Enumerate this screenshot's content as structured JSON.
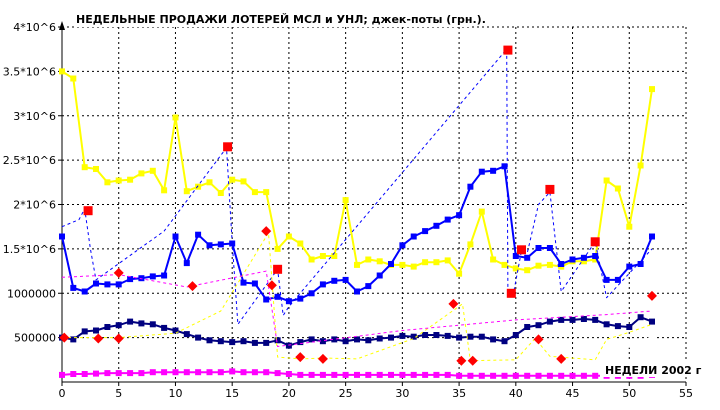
{
  "chart_data": {
    "type": "line",
    "title": "НЕДЕЛЬНЫЕ ПРОДАЖИ ЛОТЕРЕЙ МСЛ и УНЛ; джек-поты (грн.).",
    "xlabel": "НЕДЕЛИ 2002 г",
    "ylabel": "",
    "xlim": [
      0,
      55
    ],
    "ylim": [
      0,
      4000000
    ],
    "x_ticks": [
      0,
      5,
      10,
      15,
      20,
      25,
      30,
      35,
      40,
      45,
      50,
      55
    ],
    "x_tick_labels": [
      "0",
      "5",
      "10",
      "15",
      "20",
      "25",
      "30",
      "35",
      "40",
      "45",
      "50",
      "55"
    ],
    "y_ticks": [
      500000,
      1000000,
      1500000,
      2000000,
      2500000,
      3000000,
      3500000,
      4000000
    ],
    "y_tick_labels": [
      "500000",
      "1000000",
      "1.5*10^6",
      "2*10^6",
      "2.5*10^6",
      "3*10^6",
      "3.5*10^6",
      "4*10^6"
    ],
    "grid": true,
    "legend": "none",
    "series": [
      {
        "color": "#ffff00",
        "style": "solid",
        "marker": "square",
        "width": 2,
        "x": [
          0,
          1,
          2,
          3,
          4,
          5,
          6,
          7,
          8,
          9,
          10,
          11,
          12,
          13,
          14,
          15,
          16,
          17,
          18,
          19,
          20,
          21,
          22,
          23,
          24,
          25,
          26,
          27,
          28,
          29,
          30,
          31,
          32,
          33,
          34,
          35,
          36,
          37,
          38,
          39,
          40,
          41,
          42,
          43,
          44,
          45,
          46,
          47,
          48,
          49,
          50,
          51,
          52
        ],
        "y": [
          3500000,
          3420000,
          2420000,
          2400000,
          2250000,
          2270000,
          2280000,
          2350000,
          2380000,
          2160000,
          2980000,
          2150000,
          2200000,
          2250000,
          2130000,
          2280000,
          2260000,
          2140000,
          2140000,
          1500000,
          1640000,
          1560000,
          1380000,
          1420000,
          1420000,
          2050000,
          1320000,
          1380000,
          1360000,
          1320000,
          1320000,
          1300000,
          1350000,
          1350000,
          1370000,
          1220000,
          1550000,
          1920000,
          1380000,
          1320000,
          1280000,
          1260000,
          1310000,
          1320000,
          1300000,
          1360000,
          1360000,
          1380000,
          2270000,
          2180000,
          1750000,
          2440000,
          3300000
        ]
      },
      {
        "color": "#0000ff",
        "style": "solid",
        "marker": "square",
        "width": 2,
        "x": [
          0,
          1,
          2,
          3,
          4,
          5,
          6,
          7,
          8,
          9,
          10,
          11,
          12,
          13,
          14,
          15,
          16,
          17,
          18,
          19,
          20,
          21,
          22,
          23,
          24,
          25,
          26,
          27,
          28,
          29,
          30,
          31,
          32,
          33,
          34,
          35,
          36,
          37,
          38,
          39,
          40,
          41,
          42,
          43,
          44,
          45,
          46,
          47,
          48,
          49,
          50,
          51,
          52
        ],
        "y": [
          1640000,
          1060000,
          1020000,
          1110000,
          1100000,
          1100000,
          1160000,
          1170000,
          1190000,
          1200000,
          1640000,
          1340000,
          1660000,
          1540000,
          1550000,
          1560000,
          1120000,
          1110000,
          930000,
          960000,
          910000,
          940000,
          1000000,
          1100000,
          1140000,
          1150000,
          1020000,
          1080000,
          1200000,
          1330000,
          1540000,
          1640000,
          1700000,
          1760000,
          1830000,
          1880000,
          2200000,
          2370000,
          2380000,
          2430000,
          1420000,
          1400000,
          1510000,
          1510000,
          1330000,
          1380000,
          1400000,
          1420000,
          1150000,
          1150000,
          1300000,
          1330000,
          1640000
        ]
      },
      {
        "color": "#000080",
        "style": "solid",
        "marker": "square",
        "width": 2,
        "x": [
          0,
          1,
          2,
          3,
          4,
          5,
          6,
          7,
          8,
          9,
          10,
          11,
          12,
          13,
          14,
          15,
          16,
          17,
          18,
          19,
          20,
          21,
          22,
          23,
          24,
          25,
          26,
          27,
          28,
          29,
          30,
          31,
          32,
          33,
          34,
          35,
          36,
          37,
          38,
          39,
          40,
          41,
          42,
          43,
          44,
          45,
          46,
          47,
          48,
          49,
          50,
          51,
          52
        ],
        "y": [
          500000,
          480000,
          570000,
          580000,
          620000,
          640000,
          680000,
          660000,
          650000,
          610000,
          580000,
          540000,
          500000,
          470000,
          460000,
          450000,
          460000,
          440000,
          440000,
          470000,
          410000,
          450000,
          480000,
          460000,
          480000,
          460000,
          480000,
          470000,
          490000,
          500000,
          520000,
          510000,
          530000,
          530000,
          520000,
          500000,
          510000,
          510000,
          480000,
          460000,
          530000,
          620000,
          640000,
          680000,
          700000,
          700000,
          710000,
          700000,
          650000,
          630000,
          620000,
          730000,
          680000
        ]
      },
      {
        "color": "#ff00ff",
        "style": "solid",
        "marker": "square",
        "width": 2,
        "x": [
          0,
          1,
          2,
          3,
          4,
          5,
          6,
          7,
          8,
          9,
          10,
          11,
          12,
          13,
          14,
          15,
          16,
          17,
          18,
          19,
          20,
          21,
          22,
          23,
          24,
          25,
          26,
          27,
          28,
          29,
          30,
          31,
          32,
          33,
          34,
          35,
          36,
          37,
          38,
          39,
          40,
          41,
          42,
          43,
          44,
          45,
          46,
          47,
          48,
          49,
          50,
          51,
          52
        ],
        "y": [
          80000,
          90000,
          90000,
          95000,
          100000,
          100000,
          100000,
          100000,
          110000,
          110000,
          110000,
          110000,
          110000,
          110000,
          110000,
          120000,
          110000,
          110000,
          110000,
          100000,
          90000,
          80000,
          80000,
          80000,
          80000,
          80000,
          80000,
          80000,
          80000,
          80000,
          80000,
          80000,
          80000,
          80000,
          80000,
          70000,
          70000,
          70000,
          70000,
          70000,
          70000,
          70000,
          70000,
          70000,
          70000,
          70000,
          70000,
          70000,
          70000,
          70000,
          70000,
          70000,
          80000
        ]
      },
      {
        "color": "#ffffff",
        "style": "solid",
        "marker": "square",
        "width": 2,
        "x": [
          48,
          49,
          50,
          51,
          52
        ],
        "y": [
          560000,
          440000,
          420000,
          440000,
          510000
        ]
      },
      {
        "color": "#0000ff",
        "style": "dashed",
        "marker": "none",
        "width": 1,
        "x": [
          0,
          1.5,
          2,
          2.5,
          3,
          9,
          14.5,
          15,
          15.5,
          19,
          19.5,
          20,
          39.2,
          39.3,
          39.8,
          40.5,
          41,
          42,
          43,
          44,
          47,
          48,
          52
        ],
        "y": [
          1750000,
          1830000,
          1950000,
          1500000,
          1150000,
          1700000,
          2640000,
          1570000,
          650000,
          1270000,
          750000,
          850000,
          3750000,
          1000000,
          1000000,
          1480000,
          1450000,
          2000000,
          2140000,
          1020000,
          1580000,
          950000,
          1500000
        ]
      },
      {
        "color": "#ffff00",
        "style": "dashed",
        "marker": "none",
        "width": 1,
        "x": [
          0,
          5,
          10,
          14,
          18.2,
          19,
          21,
          23,
          26,
          31,
          35.3,
          36,
          40,
          41.7,
          43,
          47,
          48,
          50,
          52
        ],
        "y": [
          500000,
          500000,
          550000,
          800000,
          1680000,
          280000,
          260000,
          270000,
          260000,
          490000,
          880000,
          240000,
          250000,
          490000,
          290000,
          250000,
          480000,
          560000,
          650000
        ]
      },
      {
        "color": "#ff00ff",
        "style": "dashed",
        "marker": "none",
        "width": 1,
        "x": [
          0,
          5,
          11,
          18,
          19,
          30,
          40,
          48,
          52
        ],
        "y": [
          1180000,
          1210000,
          1070000,
          1250000,
          400000,
          580000,
          700000,
          760000,
          800000
        ]
      }
    ],
    "jackpot_markers_red_squares": [
      {
        "x": 2.3,
        "y": 1930000
      },
      {
        "x": 14.6,
        "y": 2650000
      },
      {
        "x": 19.0,
        "y": 1270000
      },
      {
        "x": 39.3,
        "y": 3740000
      },
      {
        "x": 39.6,
        "y": 1000000
      },
      {
        "x": 40.5,
        "y": 1490000
      },
      {
        "x": 43.0,
        "y": 2170000
      },
      {
        "x": 47.0,
        "y": 1580000
      }
    ],
    "jackpot_markers_red_diamonds": [
      {
        "x": 0.2,
        "y": 500000
      },
      {
        "x": 3.2,
        "y": 490000
      },
      {
        "x": 5.0,
        "y": 490000
      },
      {
        "x": 5.0,
        "y": 1230000
      },
      {
        "x": 11.5,
        "y": 1080000
      },
      {
        "x": 18.0,
        "y": 1700000
      },
      {
        "x": 18.5,
        "y": 1090000
      },
      {
        "x": 21.0,
        "y": 280000
      },
      {
        "x": 23.0,
        "y": 260000
      },
      {
        "x": 34.5,
        "y": 880000
      },
      {
        "x": 35.2,
        "y": 240000
      },
      {
        "x": 36.2,
        "y": 240000
      },
      {
        "x": 42.0,
        "y": 480000
      },
      {
        "x": 44.0,
        "y": 260000
      },
      {
        "x": 52.0,
        "y": 970000
      }
    ]
  }
}
